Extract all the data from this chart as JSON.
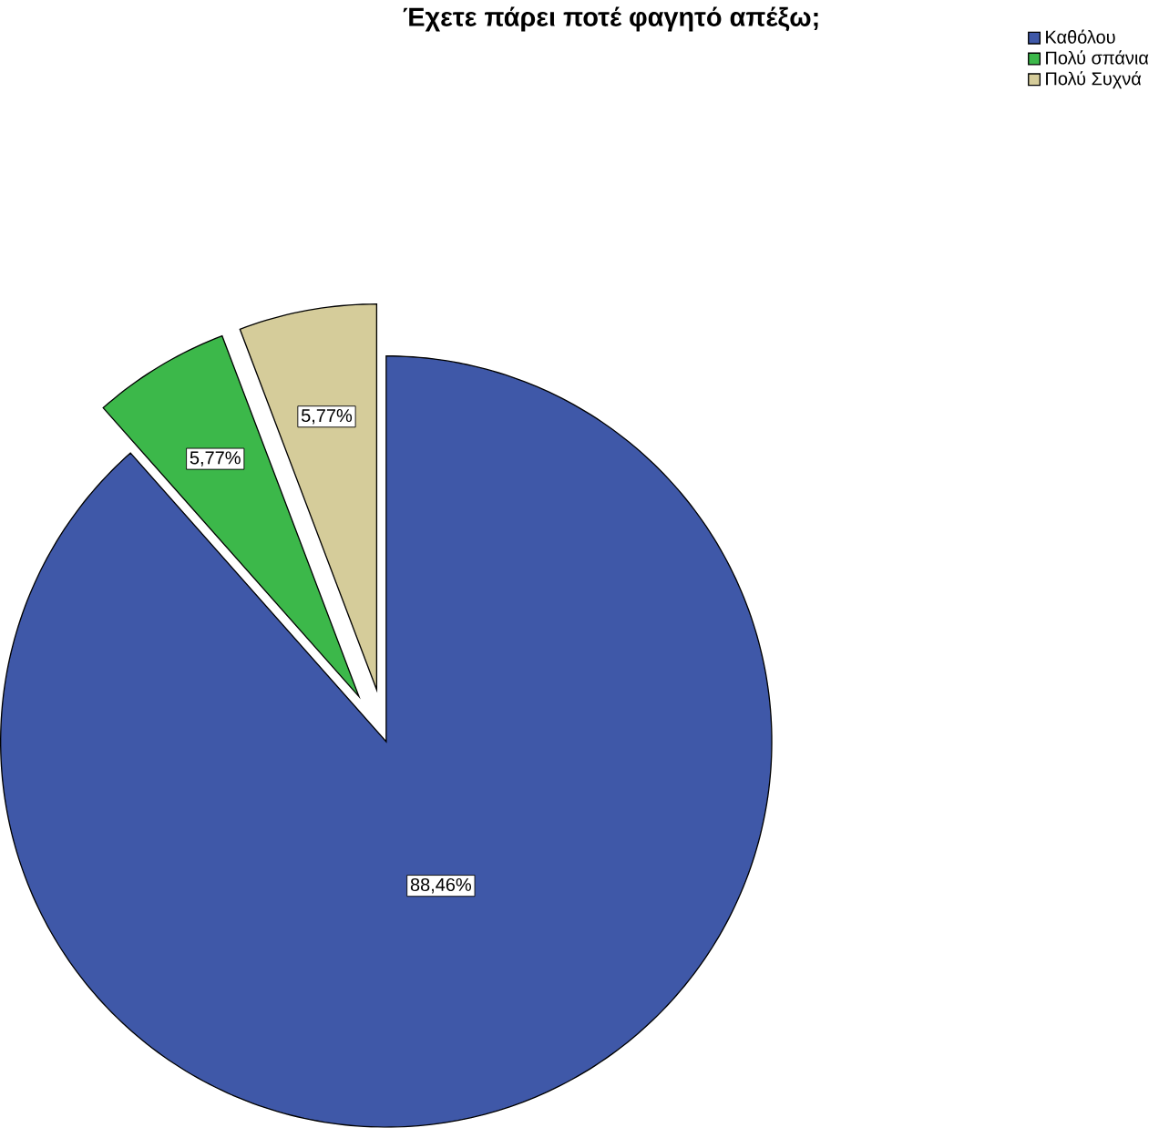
{
  "chart_data": {
    "type": "pie",
    "title": "Έχετε πάρει ποτέ φαγητό απέξω;",
    "categories": [
      "Καθόλου",
      "Πολύ σπάνια",
      "Πολύ Συχνά"
    ],
    "values": [
      88.46,
      5.77,
      5.77
    ],
    "colors": [
      "#3f58a8",
      "#3cb84a",
      "#d5cc9a"
    ],
    "value_labels": [
      "88,46%",
      "5,77%",
      "5,77%"
    ],
    "legend": "top right"
  }
}
